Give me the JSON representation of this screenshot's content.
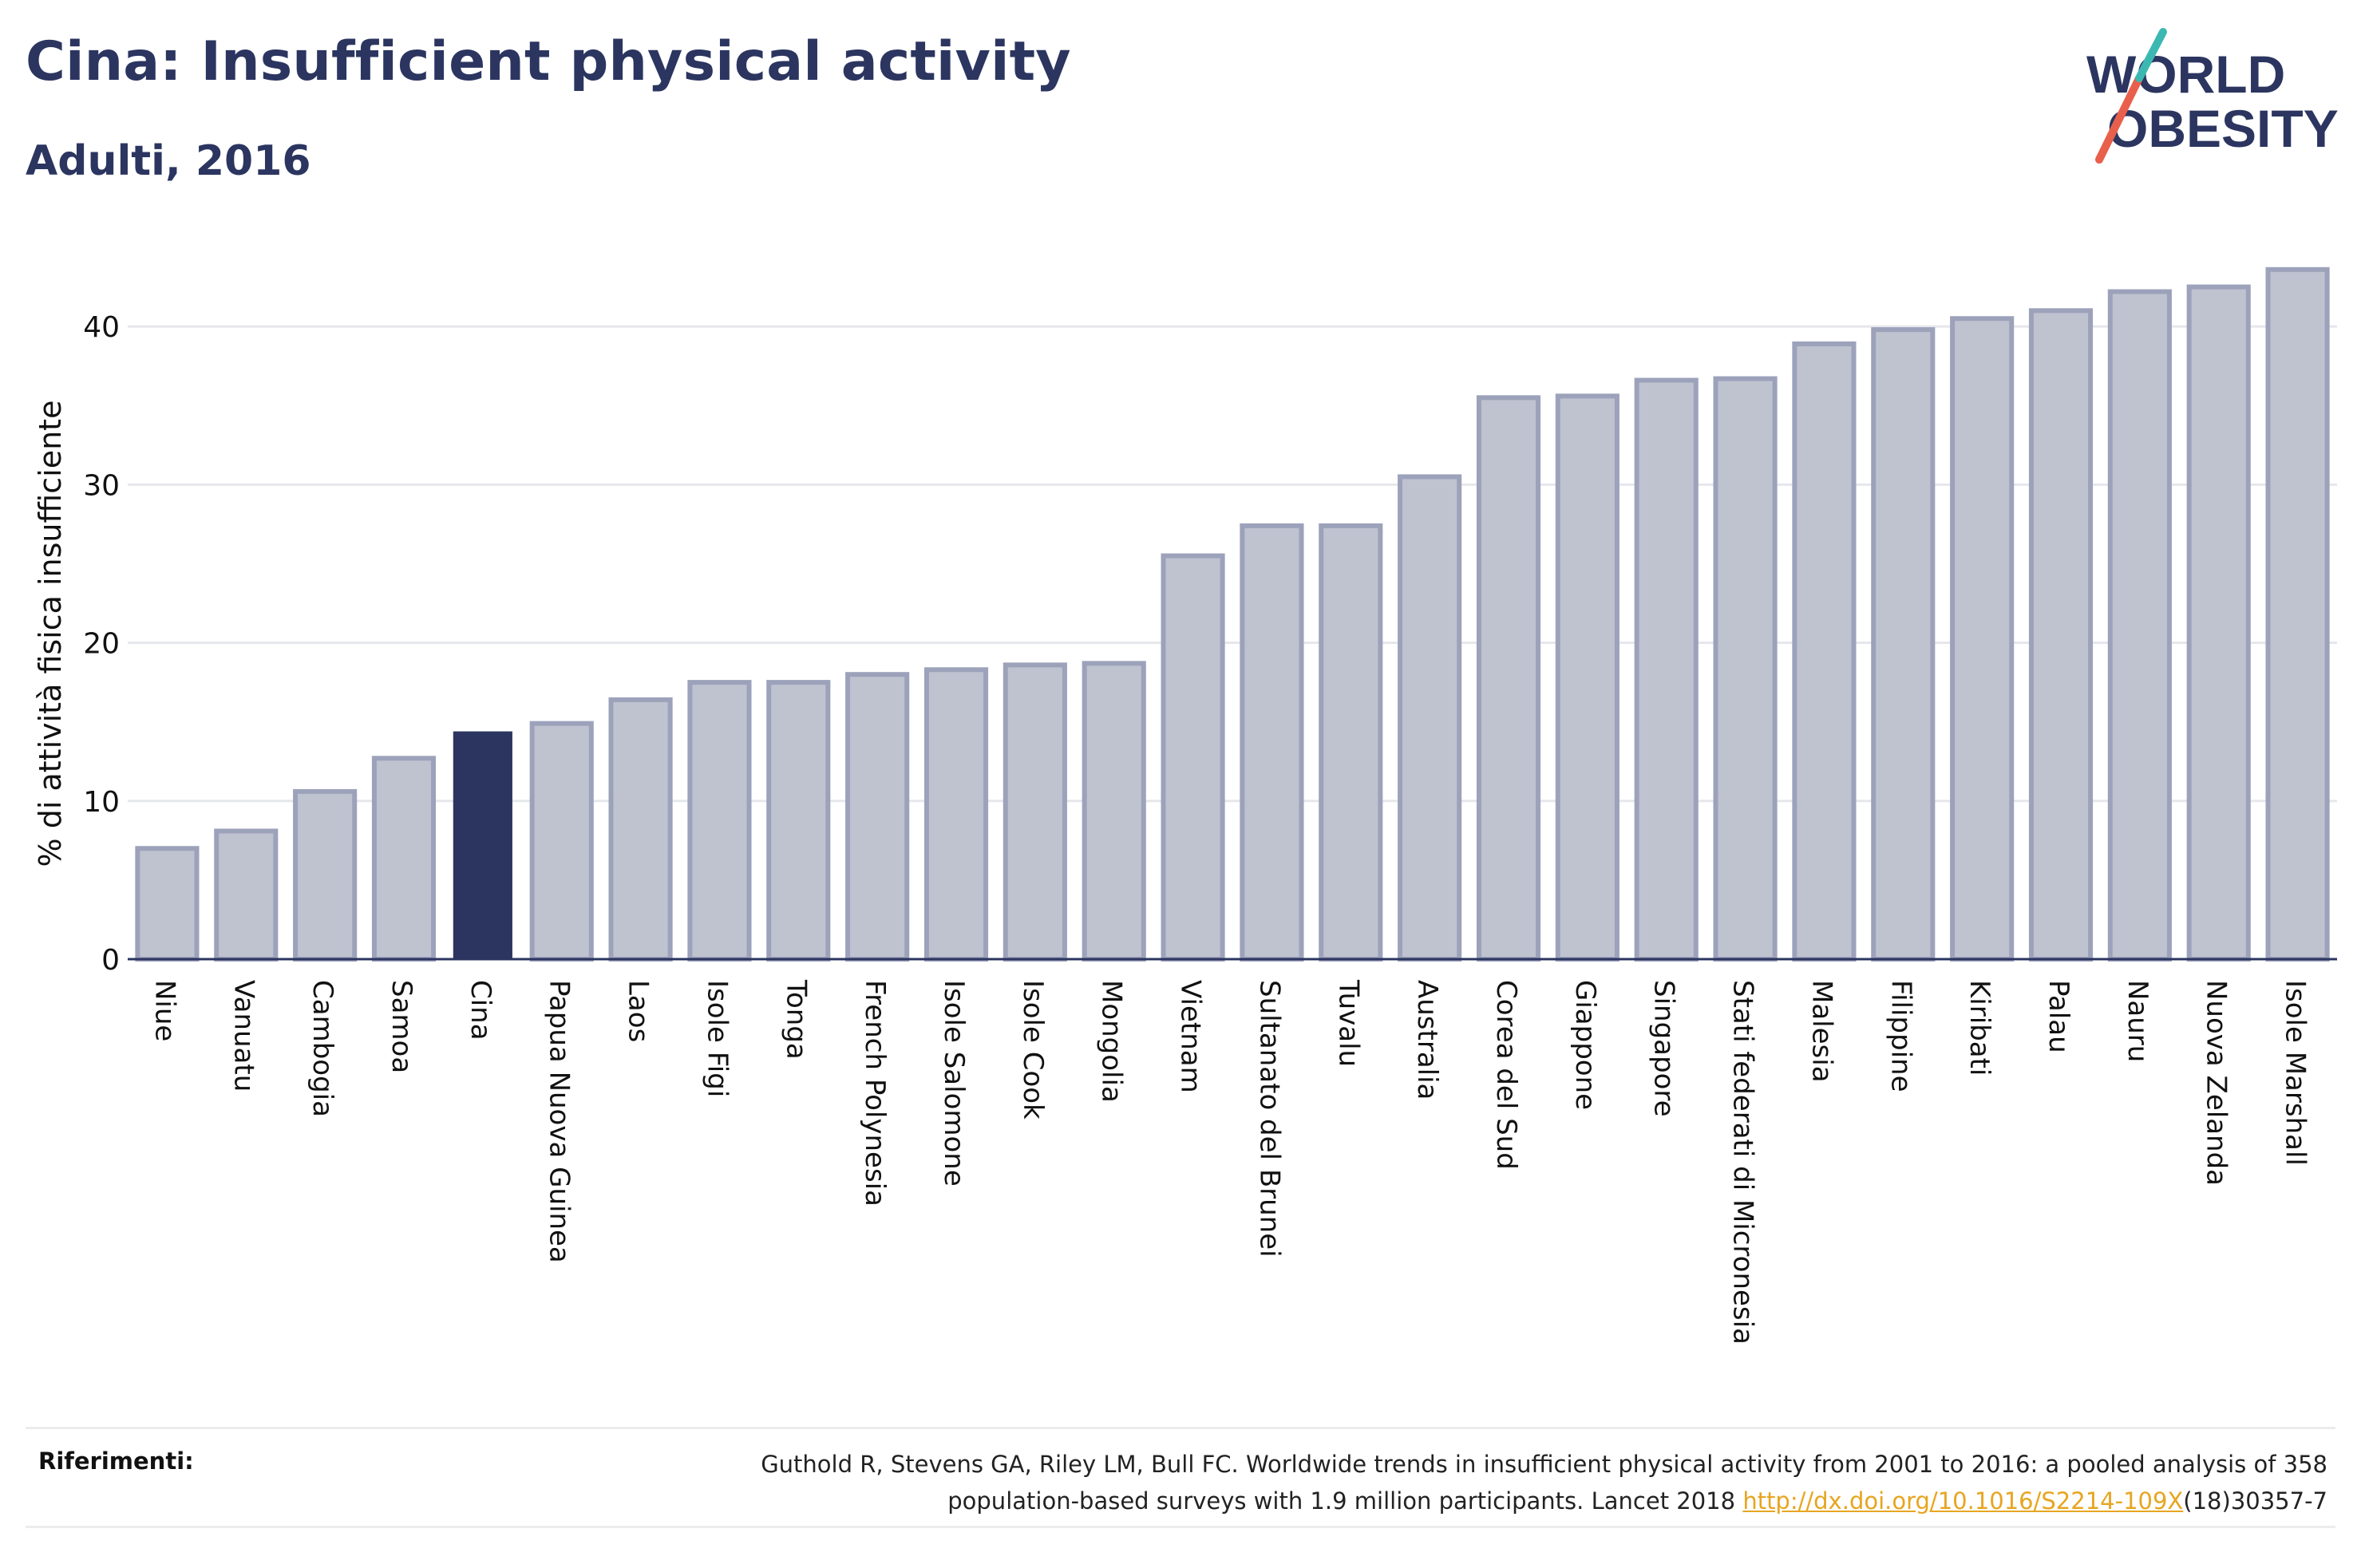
{
  "header": {
    "title": "Cina: Insufficient physical activity",
    "subtitle": "Adulti, 2016"
  },
  "logo": {
    "line1": "WORLD",
    "line2": "OBESITY",
    "colors": {
      "text": "#2b3560",
      "slash_red": "#e8604c",
      "slash_teal": "#3cb8b2"
    }
  },
  "references": {
    "label": "Riferimenti:",
    "text_line1": "Guthold R, Stevens GA, Riley LM, Bull FC. Worldwide trends in insufficient physical activity from 2001 to 2016: a pooled analysis of 358",
    "text_line2_before": "population-based surveys with 1.9 million participants. Lancet 2018 ",
    "link": "http://dx.doi.org/10.1016/S2214-109X",
    "text_line2_after": "(18)30357-7"
  },
  "chart_data": {
    "type": "bar",
    "ylabel": "% di attività fisica insufficiente",
    "ylim": [
      0,
      45
    ],
    "yticks": [
      0,
      10,
      20,
      30,
      40
    ],
    "grid": true,
    "highlight": "Cina",
    "colors": {
      "bar_fill": "#bfc2cf",
      "bar_stroke": "#9da2bb",
      "highlight": "#2b3560",
      "grid": "#e6e7ec",
      "axis": "#2b3560"
    },
    "categories": [
      "Niue",
      "Vanuatu",
      "Cambogia",
      "Samoa",
      "Cina",
      "Papua Nuova Guinea",
      "Laos",
      "Isole Figi",
      "Tonga",
      "French Polynesia",
      "Isole Salomone",
      "Isole Cook",
      "Mongolia",
      "Vietnam",
      "Sultanato del Brunei",
      "Tuvalu",
      "Australia",
      "Corea del Sud",
      "Giappone",
      "Singapore",
      "Stati federati di Micronesia",
      "Malesia",
      "Filippine",
      "Kiribati",
      "Palau",
      "Nauru",
      "Nuova Zelanda",
      "Isole Marshall"
    ],
    "values": [
      7.0,
      8.1,
      10.6,
      12.7,
      14.4,
      14.9,
      16.4,
      17.5,
      17.5,
      18.0,
      18.3,
      18.6,
      18.7,
      25.5,
      27.4,
      27.4,
      30.5,
      35.5,
      35.6,
      36.6,
      36.7,
      38.9,
      39.8,
      40.5,
      41.0,
      42.2,
      42.5,
      43.6
    ]
  }
}
